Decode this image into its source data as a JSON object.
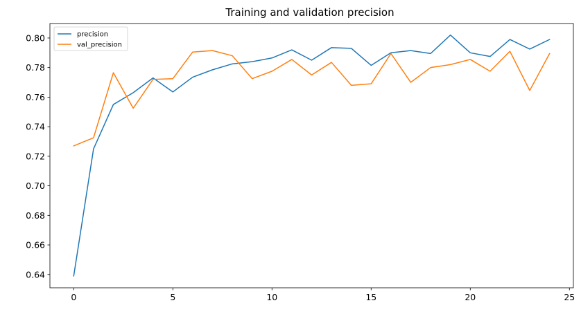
{
  "chart_data": {
    "type": "line",
    "title": "Training and validation precision",
    "xlabel": "",
    "ylabel": "",
    "xlim": [
      -1.2,
      25.2
    ],
    "ylim": [
      0.631,
      0.8098
    ],
    "xticks": [
      0,
      5,
      10,
      15,
      20,
      25
    ],
    "yticks": [
      0.64,
      0.66,
      0.68,
      0.7,
      0.72,
      0.74,
      0.76,
      0.78,
      0.8
    ],
    "grid": false,
    "legend_position": "top-left",
    "x": [
      0,
      1,
      2,
      3,
      4,
      5,
      6,
      7,
      8,
      9,
      10,
      11,
      12,
      13,
      14,
      15,
      16,
      17,
      18,
      19,
      20,
      21,
      22,
      23,
      24
    ],
    "series": [
      {
        "name": "precision",
        "color": "#1f77b4",
        "values": [
          0.639,
          0.725,
          0.755,
          0.763,
          0.773,
          0.7635,
          0.7735,
          0.7785,
          0.7825,
          0.784,
          0.7865,
          0.792,
          0.785,
          0.7935,
          0.793,
          0.7815,
          0.79,
          0.7915,
          0.7895,
          0.802,
          0.79,
          0.7875,
          0.799,
          0.7925,
          0.799
        ]
      },
      {
        "name": "val_precision",
        "color": "#ff7f0e",
        "values": [
          0.727,
          0.7325,
          0.7765,
          0.7525,
          0.772,
          0.7725,
          0.7905,
          0.7915,
          0.788,
          0.7725,
          0.7775,
          0.7855,
          0.775,
          0.7835,
          0.768,
          0.769,
          0.7895,
          0.77,
          0.78,
          0.782,
          0.7855,
          0.7775,
          0.791,
          0.7645,
          0.7895
        ]
      }
    ]
  }
}
